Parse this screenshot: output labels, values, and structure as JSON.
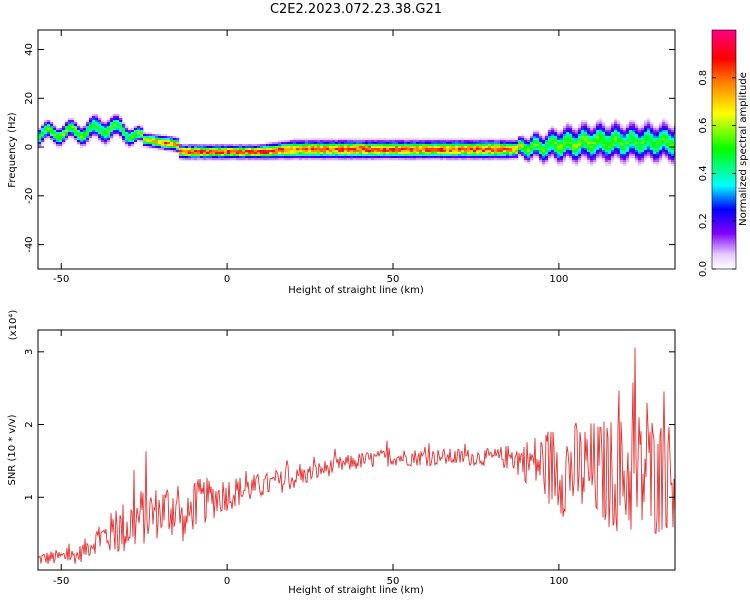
{
  "title": "C2E2.2023.072.23.38.G21",
  "chart_data": [
    {
      "type": "heatmap",
      "xlabel": "Height of straight line (km)",
      "ylabel": "Frequency (Hz)",
      "xlim": [
        -57,
        135
      ],
      "ylim": [
        -50,
        48
      ],
      "xticks": [
        -50,
        0,
        50,
        100
      ],
      "yticks": [
        40,
        20,
        0,
        -20,
        -40
      ],
      "colorbar": {
        "label": "Normalized spectral amplitude",
        "range": [
          0,
          1
        ],
        "ticks": [
          0.0,
          0.2,
          0.4,
          0.6,
          0.8
        ],
        "colors": [
          "#ffffff",
          "#e6ccff",
          "#8000ff",
          "#0000ff",
          "#00ffff",
          "#00ff00",
          "#ffff00",
          "#ff8000",
          "#ff0000",
          "#ff0080"
        ]
      },
      "ridge": {
        "x": [
          -57,
          -50,
          -45,
          -40,
          -35,
          -30,
          -25,
          -20,
          -15,
          -14,
          -10,
          0,
          10,
          20,
          40,
          60,
          80,
          88,
          90,
          95,
          100,
          110,
          120,
          135
        ],
        "y": [
          5,
          6,
          6,
          7,
          8,
          6,
          3,
          2,
          1,
          -2,
          -2,
          -2,
          -2,
          -1,
          -1,
          -1,
          -1,
          -1,
          0,
          0,
          1,
          2,
          2,
          2
        ],
        "intensity": [
          0.5,
          0.55,
          0.55,
          0.5,
          0.5,
          0.5,
          0.6,
          0.8,
          0.75,
          0.85,
          0.9,
          0.85,
          0.9,
          0.8,
          0.85,
          0.8,
          0.85,
          0.7,
          0.55,
          0.5,
          0.55,
          0.55,
          0.5,
          0.5
        ],
        "halfwidth": [
          4,
          4,
          4,
          5,
          5,
          4,
          3,
          3,
          3,
          3,
          3,
          3,
          3,
          4,
          4,
          4,
          4,
          4,
          5,
          6,
          7,
          8,
          8,
          8
        ]
      }
    },
    {
      "type": "line",
      "xlabel": "Height of straight line (km)",
      "ylabel": "SNR (10 * v/v)",
      "yscale_label": "(x10⁴)",
      "xlim": [
        -57,
        135
      ],
      "ylim": [
        0,
        3.3
      ],
      "xticks": [
        -50,
        0,
        50,
        100
      ],
      "yticks": [
        1,
        2,
        3
      ],
      "color": "#e83030",
      "envelope": {
        "x": [
          -57,
          -45,
          -40,
          -30,
          -25,
          -20,
          -15,
          -13,
          -10,
          0,
          10,
          20,
          30,
          40,
          50,
          60,
          70,
          80,
          85,
          90,
          95,
          100,
          110,
          120,
          125,
          130,
          135
        ],
        "mean": [
          0.15,
          0.2,
          0.4,
          0.6,
          0.75,
          0.8,
          0.9,
          0.6,
          0.9,
          1.05,
          1.15,
          1.25,
          1.4,
          1.5,
          1.55,
          1.55,
          1.55,
          1.55,
          1.55,
          1.5,
          1.45,
          1.4,
          1.35,
          1.3,
          1.3,
          1.3,
          1.3
        ],
        "amp": [
          0.08,
          0.1,
          0.15,
          0.35,
          0.35,
          0.3,
          0.4,
          0.2,
          0.3,
          0.2,
          0.15,
          0.12,
          0.1,
          0.1,
          0.1,
          0.1,
          0.1,
          0.1,
          0.15,
          0.25,
          0.4,
          0.55,
          0.6,
          0.7,
          0.8,
          0.7,
          0.6
        ]
      }
    }
  ]
}
